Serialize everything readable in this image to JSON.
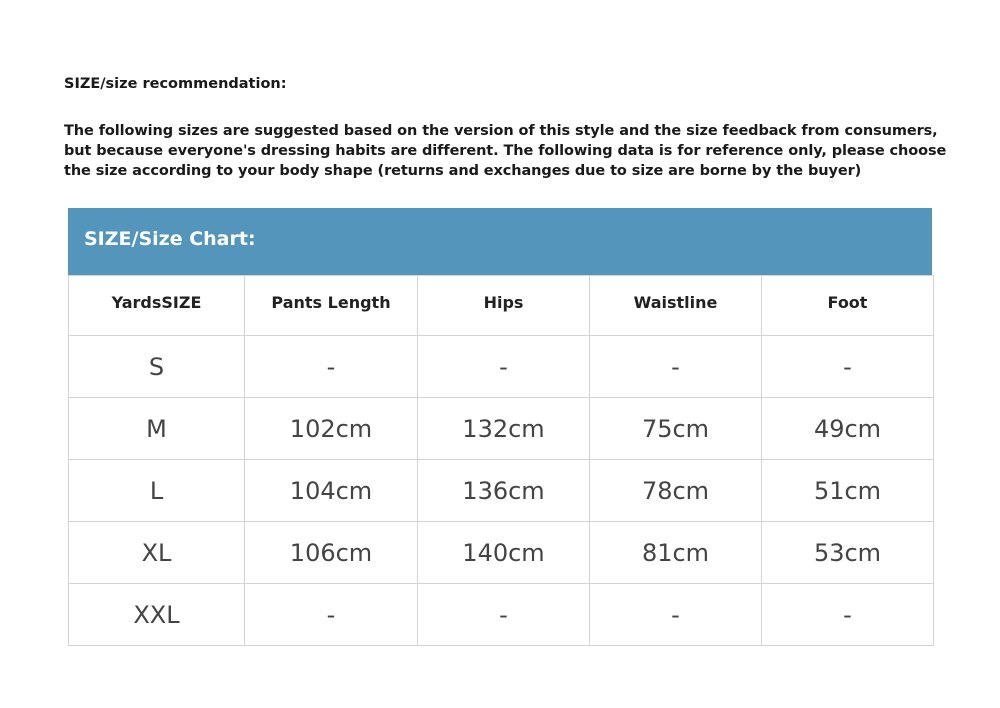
{
  "heading": "SIZE/size recommendation:",
  "intro": "The following sizes are suggested based on the version of this style and the size feedback from consumers, but because everyone's dressing habits are different. The following data is for reference only, please choose the size according to your body shape (returns and exchanges due to size are borne by the buyer)",
  "chart_title": "SIZE/Size Chart:",
  "colors": {
    "banner": "#5395bb"
  },
  "columns": [
    "YardsSIZE",
    "Pants Length",
    "Hips",
    "Waistline",
    "Foot"
  ],
  "rows": [
    [
      "S",
      "-",
      "-",
      "-",
      "-"
    ],
    [
      "M",
      "102cm",
      "132cm",
      "75cm",
      "49cm"
    ],
    [
      "L",
      "104cm",
      "136cm",
      "78cm",
      "51cm"
    ],
    [
      "XL",
      "106cm",
      "140cm",
      "81cm",
      "53cm"
    ],
    [
      "XXL",
      "-",
      "-",
      "-",
      "-"
    ]
  ]
}
